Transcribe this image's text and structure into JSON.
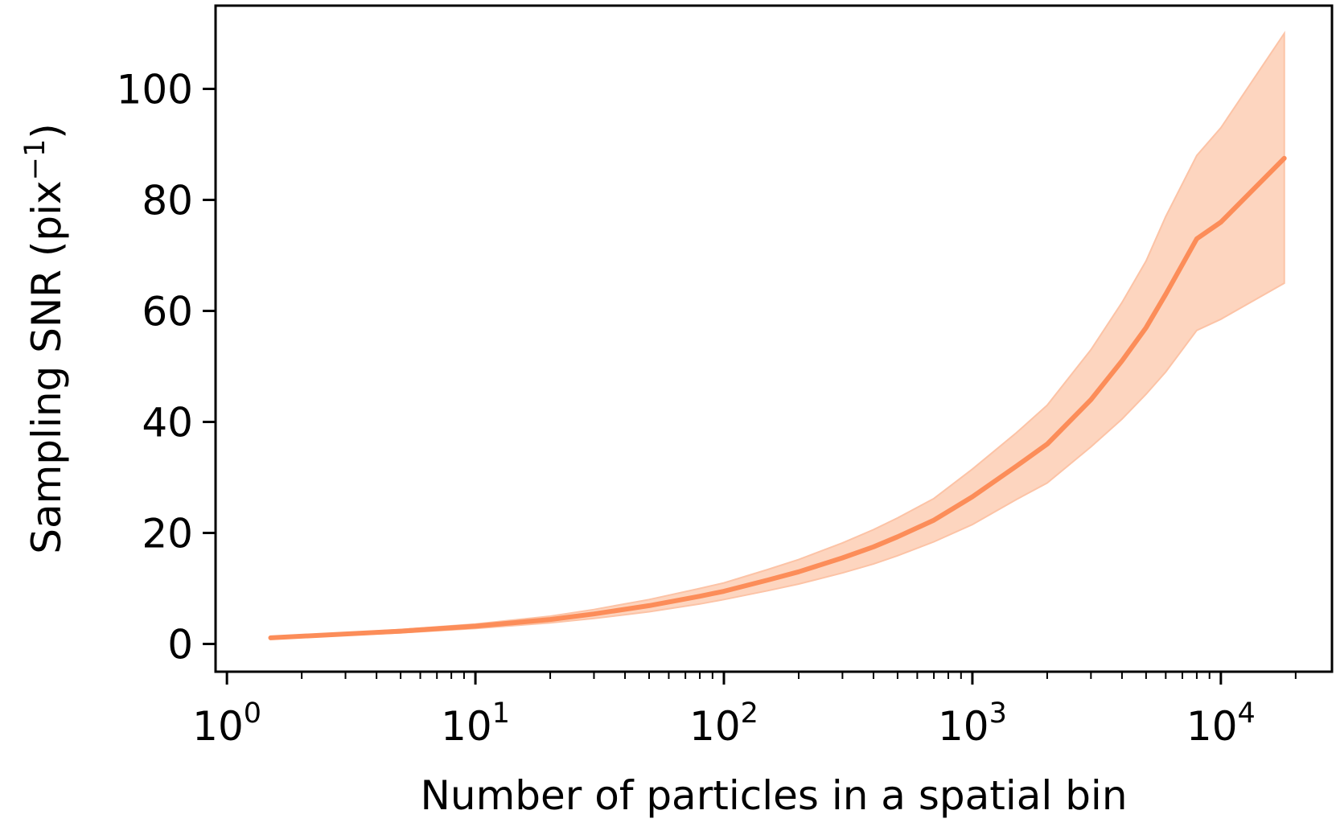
{
  "chart_data": {
    "type": "line",
    "xscale": "log",
    "xlim": [
      0.9,
      28000
    ],
    "ylim": [
      -5,
      115
    ],
    "xlabel": "Number of particles in a spatial bin",
    "ylabel_main": "Sampling SNR (pix",
    "ylabel_sup": "−1",
    "ylabel_close": ")",
    "x_ticks": [
      {
        "value": 1,
        "base": "10",
        "exp": "0"
      },
      {
        "value": 10,
        "base": "10",
        "exp": "1"
      },
      {
        "value": 100,
        "base": "10",
        "exp": "2"
      },
      {
        "value": 1000,
        "base": "10",
        "exp": "3"
      },
      {
        "value": 10000,
        "base": "10",
        "exp": "4"
      }
    ],
    "y_ticks": [
      {
        "value": 0,
        "label": "0"
      },
      {
        "value": 20,
        "label": "20"
      },
      {
        "value": 40,
        "label": "40"
      },
      {
        "value": 60,
        "label": "60"
      },
      {
        "value": 80,
        "label": "80"
      },
      {
        "value": 100,
        "label": "100"
      }
    ],
    "grid": false,
    "colors": {
      "line": "#fc8d59",
      "band": "#fdd5bf",
      "band_edge": "#fcc3a6"
    },
    "series": [
      {
        "x": [
          1.5,
          3,
          5,
          10,
          20,
          30,
          50,
          80,
          100,
          150,
          200,
          300,
          400,
          500,
          700,
          1000,
          1500,
          2000,
          3000,
          4000,
          5000,
          6000,
          8000,
          10000,
          18000
        ],
        "values": [
          1.1,
          1.8,
          2.3,
          3.2,
          4.4,
          5.4,
          6.9,
          8.6,
          9.5,
          11.5,
          13.0,
          15.5,
          17.5,
          19.3,
          22.3,
          26.5,
          32.0,
          36.0,
          44.0,
          51.0,
          57.0,
          63.0,
          73.0,
          76.0,
          87.5
        ],
        "lower": [
          1.0,
          1.6,
          2.0,
          2.8,
          3.8,
          4.6,
          5.8,
          7.2,
          8.0,
          9.6,
          10.8,
          12.8,
          14.4,
          15.9,
          18.4,
          21.5,
          26.0,
          29.0,
          35.5,
          40.5,
          45.0,
          49.0,
          56.5,
          58.5,
          65.0
        ],
        "upper": [
          1.2,
          2.0,
          2.6,
          3.6,
          5.0,
          6.2,
          8.0,
          10.0,
          11.0,
          13.4,
          15.2,
          18.2,
          20.6,
          22.7,
          26.2,
          31.5,
          38.0,
          43.0,
          53.0,
          61.5,
          69.0,
          77.0,
          88.0,
          93.0,
          110.0
        ]
      }
    ]
  }
}
